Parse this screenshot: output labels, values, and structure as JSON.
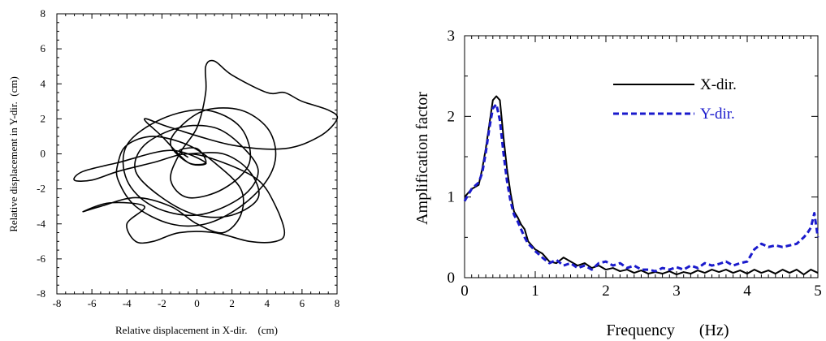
{
  "colors": {
    "x_dir": "#000000",
    "y_dir": "#1a1acc"
  },
  "chart_data": [
    {
      "type": "line",
      "xlabel": "Relative displacement in X-dir.    (cm)",
      "ylabel": "Relative displacement in Y-dir.  (cm)",
      "xlim": [
        -8,
        8
      ],
      "ylim": [
        -8,
        8
      ],
      "xticks": [
        -8,
        -6,
        -4,
        -2,
        0,
        2,
        4,
        6,
        8
      ],
      "yticks": [
        -8,
        -6,
        -4,
        -2,
        0,
        2,
        4,
        6,
        8
      ],
      "grid": false,
      "series": [
        {
          "style": "orbit-trajectory",
          "color": "#000000",
          "x": [
            -0.5,
            1.5,
            3.0,
            3.5,
            2.0,
            0.0,
            -2.0,
            -3.5,
            -3.0,
            -1.0,
            1.0,
            2.5,
            3.5,
            2.5,
            0.0,
            -2.5,
            -4.0,
            -4.0,
            -2.0,
            0.5,
            2.5,
            3.0,
            1.5,
            -0.5,
            -1.5,
            -1.0,
            0.0,
            0.5,
            0.5,
            1.0,
            2.0,
            4.0,
            5.0,
            6.0,
            7.5,
            8.0,
            7.0,
            5.0,
            2.0,
            -1.5,
            -3.0,
            -2.0,
            -0.5,
            0.5,
            -1.5,
            -4.5,
            -6.5,
            -7.0,
            -6.0,
            -4.5,
            -2.5,
            -0.5,
            1.5,
            3.5,
            4.5,
            5.0,
            4.5,
            3.0,
            1.0,
            -1.0,
            -2.5,
            -3.5,
            -4.0,
            -3.0,
            -5.0,
            -6.5,
            -5.5,
            -3.5,
            -1.5,
            0.0,
            1.5,
            2.5,
            2.5,
            1.0,
            -0.5,
            -2.5,
            -4.0,
            -4.5,
            -4.5,
            -3.5,
            -1.5,
            0.5,
            2.5,
            4.0,
            4.5,
            4.0,
            2.5,
            0.5,
            -1.0,
            -1.5,
            -0.5,
            0.5,
            0.0,
            -1.0,
            -0.5
          ],
          "y": [
            0.0,
            0.0,
            -1.0,
            -2.5,
            -3.5,
            -3.5,
            -2.5,
            -1.0,
            0.5,
            1.5,
            1.5,
            0.5,
            -1.0,
            -2.5,
            -3.5,
            -3.0,
            -1.5,
            0.5,
            2.0,
            2.5,
            1.5,
            -0.5,
            -2.0,
            -2.5,
            -1.5,
            0.0,
            1.5,
            3.5,
            5.0,
            5.3,
            4.5,
            3.5,
            3.5,
            3.0,
            2.5,
            2.0,
            1.0,
            0.3,
            0.5,
            1.5,
            2.0,
            1.0,
            -0.5,
            -0.5,
            0.2,
            -0.5,
            -1.0,
            -1.5,
            -1.5,
            -1.0,
            -0.5,
            0.0,
            -0.5,
            -1.5,
            -3.0,
            -4.5,
            -5.0,
            -5.0,
            -4.5,
            -4.5,
            -5.0,
            -5.0,
            -4.0,
            -3.0,
            -2.8,
            -3.3,
            -3.0,
            -2.5,
            -3.0,
            -4.0,
            -4.5,
            -3.5,
            -2.0,
            -0.5,
            0.5,
            1.0,
            0.5,
            -0.5,
            -1.5,
            -3.0,
            -4.0,
            -4.0,
            -3.0,
            -1.5,
            0.0,
            1.5,
            2.5,
            2.5,
            1.5,
            0.5,
            -0.5,
            -0.5,
            0.3,
            0.2,
            -0.2
          ]
        }
      ]
    },
    {
      "type": "line",
      "xlabel": "Frequency      (Hz)",
      "ylabel": "Amplification factor",
      "xlim": [
        0,
        5
      ],
      "ylim": [
        0,
        3
      ],
      "xticks": [
        0,
        1,
        2,
        3,
        4,
        5
      ],
      "yticks": [
        0,
        1,
        2,
        3
      ],
      "grid": false,
      "legend": "top-right",
      "series": [
        {
          "name": "X-dir.",
          "style": "solid",
          "color": "#000000",
          "x": [
            0.0,
            0.1,
            0.2,
            0.25,
            0.3,
            0.35,
            0.4,
            0.45,
            0.5,
            0.55,
            0.6,
            0.65,
            0.7,
            0.75,
            0.8,
            0.85,
            0.9,
            0.95,
            1.0,
            1.1,
            1.2,
            1.3,
            1.4,
            1.5,
            1.6,
            1.7,
            1.8,
            1.9,
            2.0,
            2.1,
            2.2,
            2.3,
            2.4,
            2.5,
            2.6,
            2.7,
            2.8,
            2.9,
            3.0,
            3.1,
            3.2,
            3.3,
            3.4,
            3.5,
            3.6,
            3.7,
            3.8,
            3.9,
            4.0,
            4.1,
            4.2,
            4.3,
            4.4,
            4.5,
            4.6,
            4.7,
            4.8,
            4.9,
            5.0
          ],
          "values": [
            1.0,
            1.1,
            1.15,
            1.35,
            1.6,
            1.9,
            2.2,
            2.25,
            2.2,
            1.75,
            1.35,
            1.05,
            0.82,
            0.75,
            0.66,
            0.6,
            0.45,
            0.4,
            0.35,
            0.3,
            0.2,
            0.18,
            0.25,
            0.2,
            0.15,
            0.18,
            0.12,
            0.15,
            0.1,
            0.12,
            0.08,
            0.1,
            0.06,
            0.09,
            0.05,
            0.07,
            0.05,
            0.08,
            0.04,
            0.07,
            0.05,
            0.09,
            0.06,
            0.1,
            0.07,
            0.1,
            0.06,
            0.09,
            0.05,
            0.1,
            0.06,
            0.09,
            0.05,
            0.1,
            0.06,
            0.1,
            0.04,
            0.1,
            0.06
          ]
        },
        {
          "name": "Y-dir.",
          "style": "dashed",
          "color": "#1a1acc",
          "x": [
            0.0,
            0.1,
            0.2,
            0.25,
            0.3,
            0.35,
            0.4,
            0.45,
            0.5,
            0.55,
            0.6,
            0.65,
            0.7,
            0.75,
            0.8,
            0.85,
            0.9,
            0.95,
            1.0,
            1.1,
            1.2,
            1.3,
            1.4,
            1.5,
            1.6,
            1.7,
            1.8,
            1.9,
            2.0,
            2.1,
            2.2,
            2.3,
            2.4,
            2.5,
            2.6,
            2.7,
            2.8,
            2.9,
            3.0,
            3.1,
            3.2,
            3.3,
            3.4,
            3.5,
            3.6,
            3.7,
            3.8,
            3.9,
            4.0,
            4.1,
            4.2,
            4.3,
            4.4,
            4.5,
            4.6,
            4.7,
            4.8,
            4.85,
            4.9,
            4.95,
            5.0
          ],
          "values": [
            0.95,
            1.1,
            1.18,
            1.3,
            1.55,
            1.85,
            2.1,
            2.15,
            1.95,
            1.55,
            1.2,
            0.95,
            0.78,
            0.7,
            0.6,
            0.5,
            0.42,
            0.38,
            0.33,
            0.25,
            0.18,
            0.22,
            0.15,
            0.18,
            0.12,
            0.15,
            0.1,
            0.18,
            0.2,
            0.15,
            0.18,
            0.12,
            0.15,
            0.1,
            0.1,
            0.08,
            0.12,
            0.1,
            0.13,
            0.1,
            0.15,
            0.12,
            0.18,
            0.15,
            0.17,
            0.2,
            0.15,
            0.18,
            0.2,
            0.35,
            0.42,
            0.38,
            0.4,
            0.38,
            0.4,
            0.42,
            0.5,
            0.55,
            0.62,
            0.8,
            0.5
          ]
        }
      ]
    }
  ]
}
